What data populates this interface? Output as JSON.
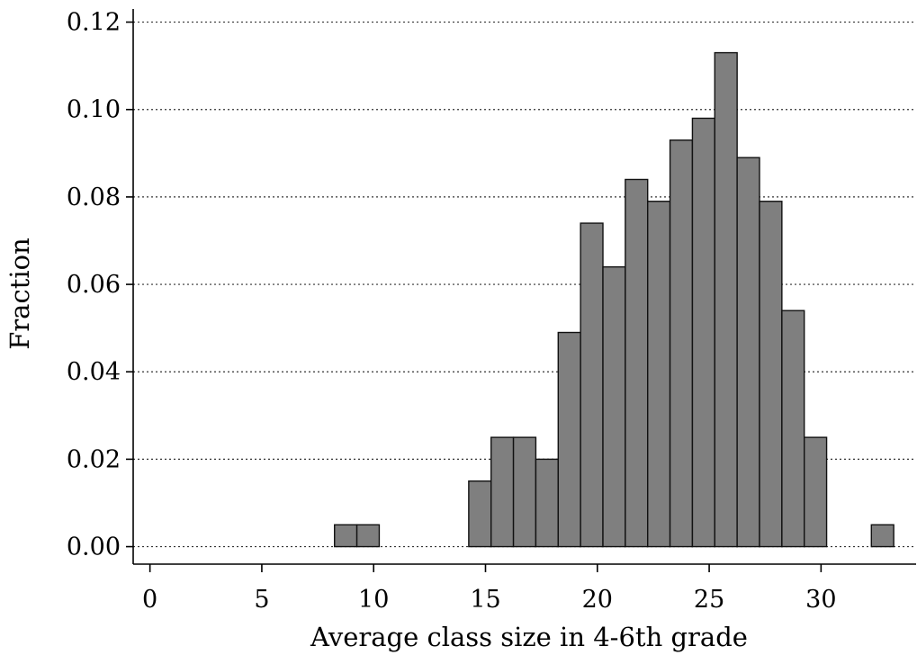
{
  "chart_data": {
    "type": "bar",
    "xlabel": "Average class size in 4-6th grade",
    "ylabel": "Fraction",
    "xlim": [
      -0.75,
      34.25
    ],
    "ylim": [
      -0.004,
      0.123
    ],
    "x_ticks": [
      0,
      5,
      10,
      15,
      20,
      25,
      30
    ],
    "x_tick_labels": [
      "0",
      "5",
      "10",
      "15",
      "20",
      "25",
      "30"
    ],
    "y_ticks": [
      0,
      0.02,
      0.04,
      0.06,
      0.08,
      0.1,
      0.12
    ],
    "y_tick_labels": [
      "0.00",
      "0.02",
      "0.04",
      "0.06",
      "0.08",
      "0.10",
      "0.12"
    ],
    "grid": true,
    "bin_width": 1,
    "bins": [
      {
        "x": 9,
        "value": 0.005
      },
      {
        "x": 10,
        "value": 0.005
      },
      {
        "x": 15,
        "value": 0.015
      },
      {
        "x": 16,
        "value": 0.025
      },
      {
        "x": 17,
        "value": 0.025
      },
      {
        "x": 18,
        "value": 0.02
      },
      {
        "x": 19,
        "value": 0.049
      },
      {
        "x": 20,
        "value": 0.074
      },
      {
        "x": 21,
        "value": 0.064
      },
      {
        "x": 22,
        "value": 0.084
      },
      {
        "x": 23,
        "value": 0.079
      },
      {
        "x": 24,
        "value": 0.093
      },
      {
        "x": 25,
        "value": 0.098
      },
      {
        "x": 26,
        "value": 0.113
      },
      {
        "x": 27,
        "value": 0.089
      },
      {
        "x": 28,
        "value": 0.079
      },
      {
        "x": 29,
        "value": 0.054
      },
      {
        "x": 30,
        "value": 0.025
      },
      {
        "x": 33,
        "value": 0.005
      }
    ]
  }
}
